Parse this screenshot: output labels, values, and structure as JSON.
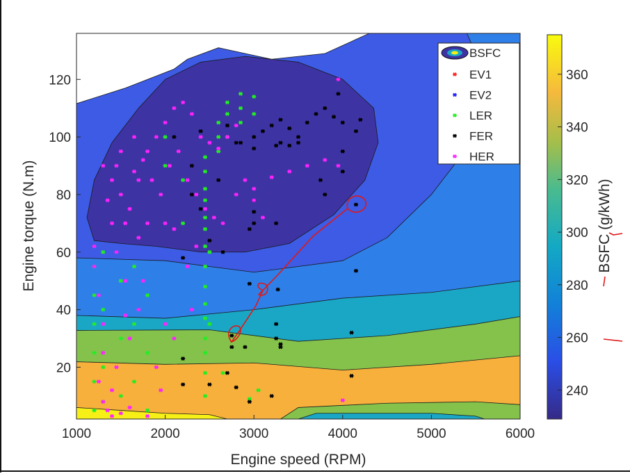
{
  "chart_data": {
    "type": "contour_scatter",
    "xlabel": "Engine speed (RPM)",
    "ylabel": "Engine torque (N.m)",
    "colorbar_label": "BSFC (g/kWh)",
    "contour_legend": "BSFC",
    "xlim": [
      1000,
      6000
    ],
    "ylim": [
      2,
      136
    ],
    "xticks": [
      1000,
      2000,
      3000,
      4000,
      5000,
      6000
    ],
    "yticks": [
      20,
      40,
      60,
      80,
      100,
      120
    ],
    "clim": [
      229,
      375
    ],
    "cticks": [
      240,
      260,
      280,
      300,
      320,
      340,
      360
    ],
    "contours": [
      {
        "level": 255,
        "color": "#3d5be4",
        "x": [
          1000,
          6000,
          6000,
          4300,
          3800,
          3200,
          2600,
          2250,
          2100,
          1550,
          1000
        ],
        "y": [
          2,
          2,
          136,
          136,
          129,
          127,
          131,
          127,
          123.6,
          117,
          111.6
        ]
      },
      {
        "level": 268,
        "color": "#2f7fe9",
        "x": [
          1000,
          6000,
          6000,
          5400,
          5700,
          5500,
          5000,
          4500,
          4000,
          3000,
          2000,
          1000
        ],
        "y": [
          2,
          2,
          136,
          136,
          115,
          100,
          80,
          65,
          57,
          53,
          57,
          58
        ]
      },
      {
        "level": 285,
        "color": "#1aa7c6",
        "x": [
          1000,
          6000,
          6000,
          5000,
          4000,
          3000,
          2000,
          1000
        ],
        "y": [
          2,
          2,
          50,
          46,
          44,
          40,
          37,
          38
        ]
      },
      {
        "level": 318,
        "color": "#84c24c",
        "x": [
          1000,
          6000,
          6000,
          5500,
          4500,
          3500,
          2500,
          1000
        ],
        "y": [
          2,
          2,
          37.6,
          35,
          31,
          29,
          33,
          32.8
        ]
      },
      {
        "level": 340,
        "color": "#f7b03b",
        "x": [
          1000,
          6000,
          6000,
          5000,
          4000,
          3000,
          2000,
          1000
        ],
        "y": [
          2,
          2,
          24,
          21,
          19,
          21.5,
          21,
          21.9
        ]
      },
      {
        "level": 318,
        "color": "#84c24c",
        "x": [
          3300,
          3500,
          4500,
          5500,
          6000,
          6000
        ],
        "y": [
          2,
          6,
          7.5,
          8,
          7,
          2
        ]
      },
      {
        "level": 285,
        "color": "#1aa7c6",
        "x": [
          3500,
          3700,
          5000,
          5500,
          5600
        ],
        "y": [
          2,
          4,
          4,
          3,
          2
        ]
      },
      {
        "level": 370,
        "color": "#f6f016",
        "x": [
          1000,
          1000,
          1500,
          2000,
          2500,
          2700
        ],
        "y": [
          2,
          6,
          5,
          4,
          3.5,
          2
        ]
      },
      {
        "level": 235,
        "color": "#3e33a3",
        "x": [
          1118,
          1200,
          1400,
          1700,
          2000,
          2400,
          2900,
          3500,
          4000,
          4350,
          4400,
          4250,
          3900,
          3400,
          2900,
          2400,
          1900,
          1500,
          1200
        ],
        "y": [
          72,
          85,
          98,
          110,
          120,
          126,
          128,
          126,
          120,
          110,
          98,
          85,
          73,
          63,
          60,
          60,
          62,
          63,
          64
        ]
      }
    ],
    "series": [
      {
        "name": "EV1",
        "color": "#ff2020",
        "x": [],
        "y": []
      },
      {
        "name": "EV2",
        "color": "#2020ff",
        "x": [],
        "y": []
      },
      {
        "name": "LER",
        "color": "#22ee22",
        "x": [
          2450,
          2450,
          2450,
          2450,
          2450,
          2450,
          2450,
          2450,
          2450,
          2450,
          2450,
          2450,
          2450,
          2450,
          2450,
          2500,
          2500,
          1200,
          1200,
          1200,
          1200,
          1200,
          1200,
          1300,
          1300,
          1300,
          1300,
          1500,
          1500,
          1500,
          1650,
          1650,
          1650,
          1800,
          1800,
          1800,
          2600,
          2600,
          2600,
          2700,
          2700,
          2700,
          2850,
          2850,
          2850,
          3000,
          3000,
          2950,
          3050,
          2650,
          2200,
          2200,
          2000,
          2000
        ],
        "y": [
          10,
          18,
          25,
          30,
          37,
          42,
          48,
          55,
          62,
          68,
          72,
          78,
          82,
          88,
          93,
          35,
          60,
          5,
          15,
          25,
          35,
          45,
          55,
          8,
          20,
          40,
          60,
          10,
          30,
          50,
          15,
          35,
          55,
          5,
          25,
          45,
          95,
          100,
          105,
          100,
          108,
          112,
          105,
          110,
          115,
          108,
          114,
          9,
          12,
          18,
          70,
          85,
          90,
          100
        ]
      },
      {
        "name": "FER",
        "color": "#000000",
        "x": [
          2750,
          2800,
          2950,
          2900,
          3200,
          3250,
          3250,
          3300,
          3300,
          2700,
          2200,
          2200,
          2500,
          2750,
          3270,
          2950,
          2500,
          2200,
          2650,
          2950,
          3000,
          3000,
          3000,
          2400,
          2300,
          2600,
          2300,
          2100,
          2400,
          2700,
          2800,
          3000,
          3100,
          3200,
          3300,
          3400,
          3500,
          3600,
          3700,
          3800,
          3900,
          4000,
          3500,
          3250,
          3000,
          2850,
          4150,
          4150,
          4100,
          4100,
          4000,
          4000,
          3800,
          3750,
          4200,
          4150,
          3950,
          3950,
          3300,
          3400,
          3250
        ],
        "y": [
          27,
          13,
          8,
          27,
          10,
          35,
          30,
          28,
          27,
          18,
          23,
          14,
          14,
          31,
          47,
          49,
          64,
          58,
          60,
          68,
          78,
          74,
          70,
          75,
          80,
          85,
          90,
          100,
          102,
          104,
          98,
          100,
          102,
          104,
          106,
          103,
          100,
          105,
          108,
          110,
          107,
          105,
          98,
          97,
          96,
          98,
          76.5,
          53.5,
          32,
          17,
          95,
          88,
          80,
          85,
          106,
          102,
          120,
          115,
          98,
          97,
          70
        ]
      },
      {
        "name": "HER",
        "color": "#ff22ff",
        "x": [
          1200,
          1200,
          1250,
          1300,
          1300,
          1250,
          1300,
          1350,
          1400,
          1500,
          1600,
          1800,
          1450,
          1600,
          1700,
          1550,
          1450,
          1400,
          1350,
          1400,
          1450,
          1500,
          1600,
          1700,
          1800,
          1900,
          2000,
          2100,
          2200,
          2300,
          2400,
          2500,
          2600,
          2700,
          2800,
          1500,
          1650,
          1750,
          1850,
          1950,
          2050,
          2150,
          2250,
          2350,
          2450,
          2550,
          2650,
          2800,
          3000,
          3200,
          3400,
          3600,
          3800,
          3950,
          3000,
          3100,
          2900,
          2000,
          2100,
          1800,
          1300,
          1700,
          1900,
          1950,
          2000,
          4000,
          3950,
          1550,
          1650,
          2350,
          2250,
          1750,
          1550,
          1400,
          2100,
          2300
        ],
        "y": [
          62,
          55,
          45,
          35,
          25,
          15,
          8,
          5,
          3,
          4,
          6,
          3,
          20,
          30,
          40,
          50,
          60,
          70,
          78,
          85,
          90,
          80,
          75,
          85,
          95,
          100,
          105,
          110,
          112,
          108,
          100,
          98,
          96,
          100,
          104,
          95,
          100,
          92,
          85,
          80,
          90,
          95,
          85,
          80,
          75,
          72,
          70,
          80,
          82,
          86,
          88,
          90,
          92,
          90,
          78,
          72,
          85,
          70,
          68,
          70,
          90,
          65,
          20,
          12,
          35,
          8.5,
          120,
          70,
          88,
          62,
          55,
          50,
          38,
          12,
          30,
          40
        ]
      }
    ]
  }
}
